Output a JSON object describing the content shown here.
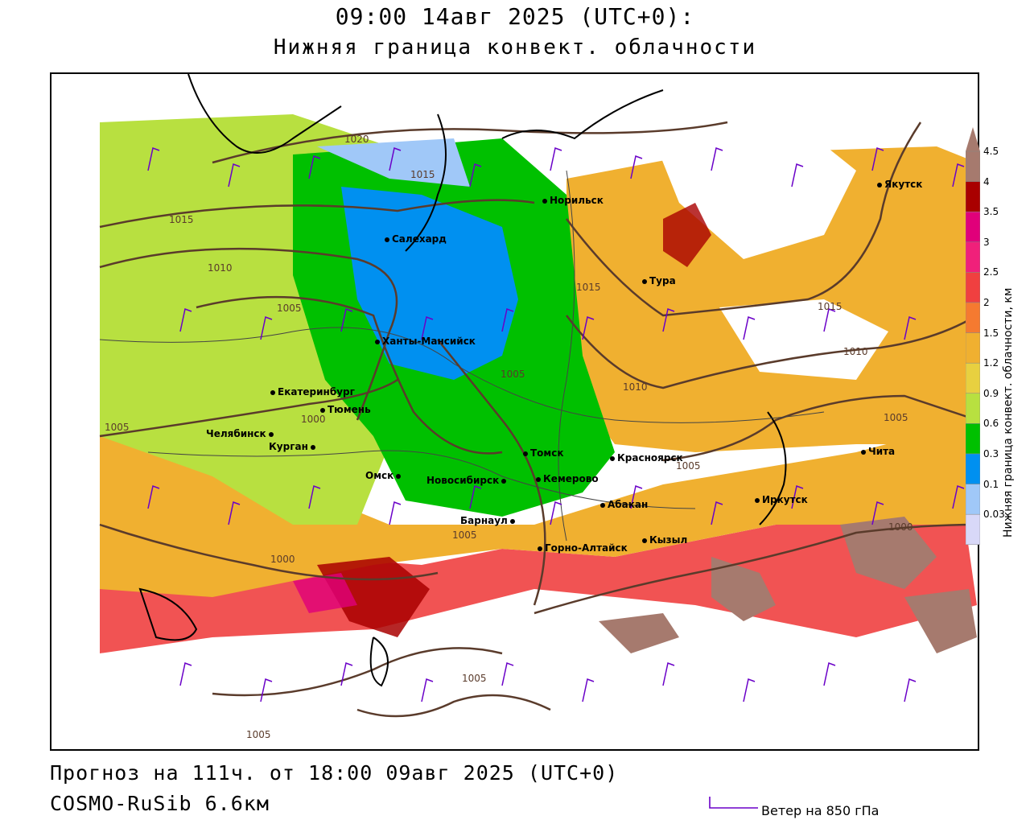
{
  "header": {
    "title_line1": "09:00 14авг 2025 (UTC+0):",
    "title_line2": "Нижняя граница конвект. облачности"
  },
  "footer": {
    "forecast": "Прогноз на 111ч. от 18:00 09авг 2025 (UTC+0)",
    "model": "COSMO-RuSib 6.6км",
    "wind_legend": "Ветер на 850 гПа"
  },
  "legend": {
    "title": "Нижняя граница конвект. облачности, км",
    "levels": [
      "4.5",
      "4",
      "3.5",
      "3",
      "2.5",
      "2",
      "1.5",
      "1.2",
      "0.9",
      "0.6",
      "0.3",
      "0.1",
      "0.03"
    ],
    "colors": [
      "#a67a6e",
      "#a90000",
      "#e0007a",
      "#f0207a",
      "#f04040",
      "#f57a30",
      "#f0b030",
      "#e8d040",
      "#b8e040",
      "#00c000",
      "#0090f0",
      "#a0c8f8",
      "#d8d8f8"
    ]
  },
  "cities": [
    {
      "name": "Норильск"
    },
    {
      "name": "Якутск"
    },
    {
      "name": "Салехард"
    },
    {
      "name": "Тура"
    },
    {
      "name": "Ханты-Мансийск"
    },
    {
      "name": "Екатеринбург"
    },
    {
      "name": "Тюмень"
    },
    {
      "name": "Челябинск"
    },
    {
      "name": "Курган"
    },
    {
      "name": "Омск"
    },
    {
      "name": "Новосибирск"
    },
    {
      "name": "Томск"
    },
    {
      "name": "Кемерово"
    },
    {
      "name": "Красноярск"
    },
    {
      "name": "Барнаул"
    },
    {
      "name": "Абакан"
    },
    {
      "name": "Горно-Алтайск"
    },
    {
      "name": "Кызыл"
    },
    {
      "name": "Иркутск"
    },
    {
      "name": "Чита"
    }
  ],
  "isobars": [
    "1020",
    "1015",
    "1015",
    "1010",
    "1005",
    "1015",
    "1015",
    "1010",
    "1010",
    "1005",
    "1005",
    "1000",
    "1000",
    "1005",
    "1005",
    "1000",
    "1005",
    "1005",
    "1005"
  ]
}
